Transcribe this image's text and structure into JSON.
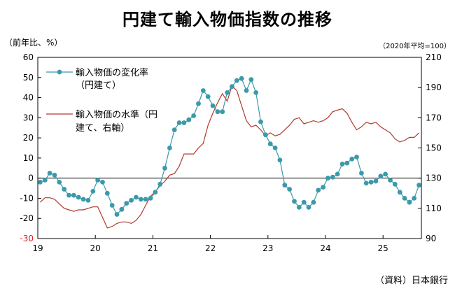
{
  "header": {
    "title": "円建て輸入物価指数の推移",
    "left_unit": "（前年比、%）",
    "right_unit": "（2020年平均=100）"
  },
  "footer": {
    "source": "（資料）日本銀行"
  },
  "chart_data": {
    "type": "line",
    "title": "円建て輸入物価指数の推移",
    "x_tick_labels": [
      "19",
      "20",
      "21",
      "22",
      "23",
      "24",
      "25"
    ],
    "y_left": {
      "range": [
        -30,
        60
      ],
      "ticks": [
        "60",
        "50",
        "40",
        "30",
        "20",
        "10",
        "0",
        "-10",
        "-20",
        "-30"
      ]
    },
    "y_right": {
      "range": [
        90,
        210
      ],
      "ticks": [
        "210",
        "190",
        "170",
        "150",
        "130",
        "110",
        "90"
      ]
    },
    "legend": [
      "輸入物価の変化率（円建て）",
      "輸入物価の水準（円建て、右軸）"
    ],
    "colors": {
      "yoy": "#3a9aaa",
      "level": "#b03a2e",
      "negative_tick": "#e0201a"
    },
    "series": [
      {
        "name": "輸入物価の変化率（円建て）",
        "axis": "left",
        "values": [
          -2.0,
          -1.0,
          2.5,
          1.5,
          -2.0,
          -5.5,
          -8.5,
          -8.5,
          -9.5,
          -10.5,
          -11.0,
          -6.5,
          -1.0,
          -2.0,
          -7.5,
          -13.5,
          -18.0,
          -15.5,
          -12.5,
          -11.0,
          -9.5,
          -10.5,
          -10.5,
          -10.0,
          -7.0,
          -3.0,
          5.0,
          15.0,
          24.0,
          27.5,
          27.5,
          29.0,
          31.0,
          37.0,
          43.5,
          40.5,
          36.0,
          33.0,
          33.0,
          42.5,
          45.5,
          48.5,
          49.5,
          43.5,
          49.0,
          42.5,
          28.0,
          21.5,
          17.0,
          15.0,
          9.0,
          -3.5,
          -5.5,
          -11.5,
          -14.5,
          -12.0,
          -14.5,
          -12.0,
          -6.0,
          -4.5,
          0.0,
          0.5,
          2.0,
          7.0,
          7.5,
          9.5,
          10.5,
          2.5,
          -2.5,
          -2.0,
          -1.5,
          1.0,
          2.0,
          -1.0,
          -3.0,
          -7.0,
          -10.0,
          -12.0,
          -10.0,
          -3.5
        ]
      },
      {
        "name": "輸入物価の水準（円建て、右軸）",
        "axis": "right",
        "values": [
          114,
          117,
          117,
          116,
          113,
          110,
          109,
          108,
          109,
          109,
          110,
          111,
          111,
          104,
          97,
          98,
          100,
          101,
          101,
          100,
          102,
          106,
          112,
          118,
          121,
          125,
          128,
          132,
          133,
          138,
          146,
          146,
          146,
          150,
          153,
          165,
          173,
          180,
          186,
          181,
          191,
          188,
          178,
          168,
          164,
          165,
          162,
          158,
          160,
          158,
          159,
          162,
          165,
          169,
          170,
          166,
          167,
          168,
          167,
          168,
          170,
          174,
          175,
          176,
          173,
          167,
          162,
          164,
          167,
          166,
          167,
          164,
          162,
          160,
          156,
          154,
          155,
          157,
          157,
          160
        ]
      }
    ]
  }
}
